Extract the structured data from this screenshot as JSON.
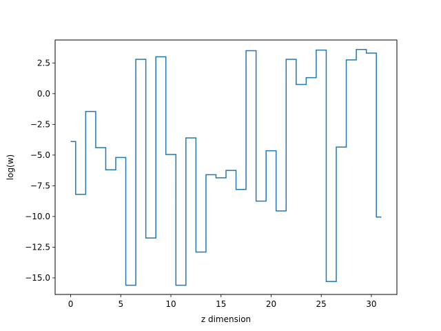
{
  "chart_data": {
    "type": "line",
    "drawstyle": "steps-mid",
    "title": "",
    "xlabel": "z dimension",
    "ylabel": "log(w)",
    "xlim": [
      -1.55,
      32.55
    ],
    "ylim": [
      -16.35,
      4.37
    ],
    "xticks": [
      0,
      5,
      10,
      15,
      20,
      25,
      30
    ],
    "xtick_labels": [
      "0",
      "5",
      "10",
      "15",
      "20",
      "25",
      "30"
    ],
    "yticks": [
      -15.0,
      -12.5,
      -10.0,
      -7.5,
      -5.0,
      -2.5,
      0.0,
      2.5
    ],
    "ytick_labels": [
      "−15.0",
      "−12.5",
      "−10.0",
      "−7.5",
      "−5.0",
      "−2.5",
      "0.0",
      "2.5"
    ],
    "grid": false,
    "legend": "none",
    "series": [
      {
        "color": "#1f77b4",
        "x": [
          0,
          1,
          2,
          3,
          4,
          5,
          6,
          7,
          8,
          9,
          10,
          11,
          12,
          13,
          14,
          15,
          16,
          17,
          18,
          19,
          20,
          21,
          22,
          23,
          24,
          25,
          26,
          27,
          28,
          29,
          30,
          31
        ],
        "values": [
          -3.9,
          -8.2,
          -1.45,
          -4.4,
          -6.2,
          -5.2,
          -15.6,
          2.8,
          -11.75,
          3.0,
          -4.95,
          -15.6,
          -3.6,
          -12.9,
          -6.6,
          -6.85,
          -6.25,
          -7.8,
          3.5,
          -8.75,
          -4.65,
          -9.55,
          2.8,
          0.75,
          1.3,
          3.55,
          -15.3,
          -4.35,
          2.75,
          3.6,
          3.3,
          -10.05
        ]
      }
    ]
  }
}
